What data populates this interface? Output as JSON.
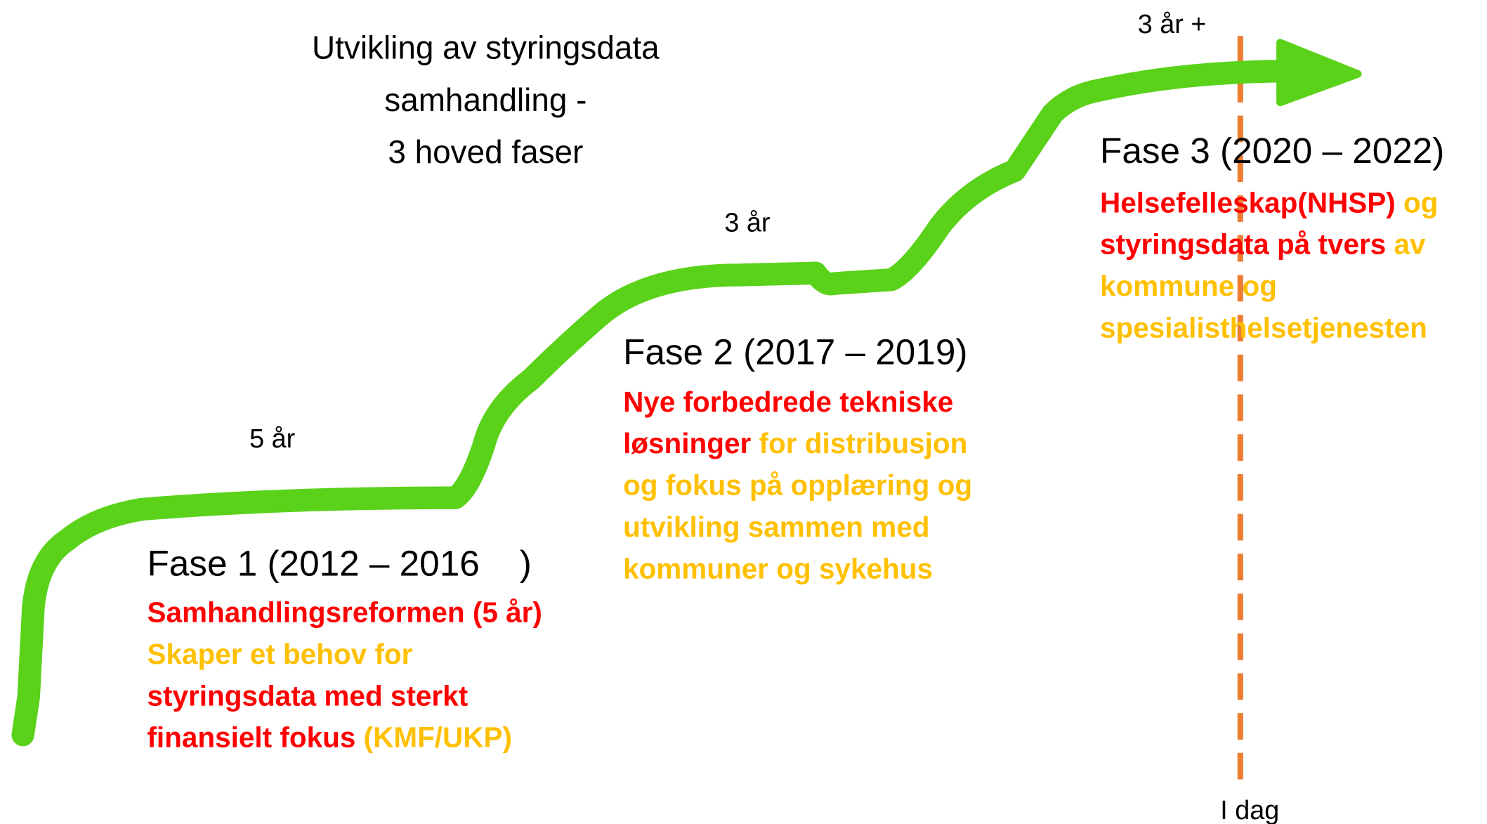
{
  "title": [
    "Utvikling av styringsdata",
    "samhandling -",
    "3 hoved faser"
  ],
  "durations": [
    "5 år",
    "3 år",
    "3 år +"
  ],
  "today_label": "I dag",
  "phases": [
    {
      "heading": "Fase 1 (2012 – 2016    )",
      "lines": [
        [
          {
            "text": "Samhandlingsreformen (5 år)",
            "color": "#ff0000"
          }
        ],
        [
          {
            "text": "Skaper et behov for",
            "color": "#ffc000"
          }
        ],
        [
          {
            "text": "styringsdata med sterkt",
            "color": "#ff0000"
          }
        ],
        [
          {
            "text": "finansielt fokus",
            "color": "#ff0000"
          },
          {
            "text": " (KMF/UKP)",
            "color": "#ffc000"
          }
        ]
      ]
    },
    {
      "heading": "Fase 2 (2017 – 2019)",
      "lines": [
        [
          {
            "text": "Nye forbedrede tekniske",
            "color": "#ff0000"
          }
        ],
        [
          {
            "text": "løsninger",
            "color": "#ff0000"
          },
          {
            "text": " for distribusjon",
            "color": "#ffc000"
          }
        ],
        [
          {
            "text": "og fokus på opplæring og",
            "color": "#ffc000"
          }
        ],
        [
          {
            "text": "utvikling sammen med",
            "color": "#ffc000"
          }
        ],
        [
          {
            "text": "kommuner og sykehus",
            "color": "#ffc000"
          }
        ]
      ]
    },
    {
      "heading": "Fase 3 (2020 – 2022)",
      "lines": [
        [
          {
            "text": "Helsefelleskap(NHSP)",
            "color": "#ff0000"
          },
          {
            "text": " og",
            "color": "#ffc000"
          }
        ],
        [
          {
            "text": "styringsdata på tvers",
            "color": "#ff0000"
          },
          {
            "text": " av",
            "color": "#ffc000"
          }
        ],
        [
          {
            "text": "kommune og",
            "color": "#ffc000"
          }
        ],
        [
          {
            "text": "spesialisthelsetjenesten",
            "color": "#ffc000"
          }
        ]
      ]
    }
  ]
}
